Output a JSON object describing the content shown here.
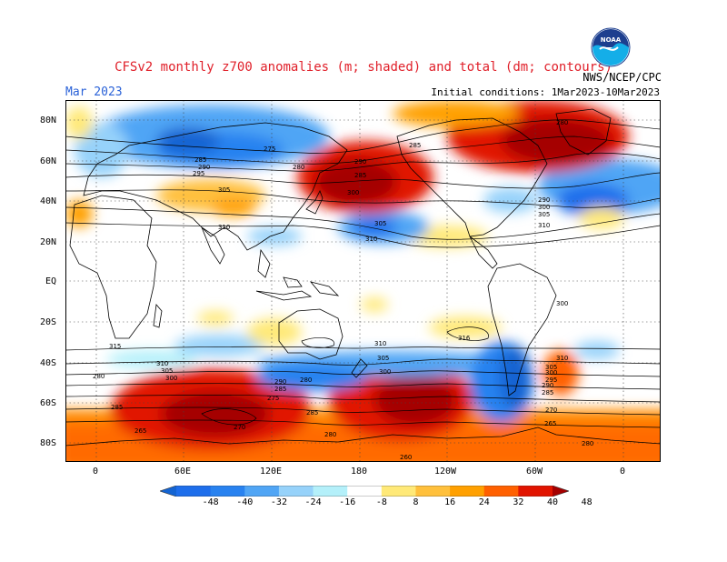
{
  "header": {
    "title": "CFSv2 monthly z700 anomalies (m; shaded) and total (dm; contours)",
    "period": "Mar 2023",
    "source": "NWS/NCEP/CPC",
    "initial_conditions": "Initial conditions: 1Mar2023-10Mar2023",
    "logo_text": "NOAA"
  },
  "map": {
    "lat_labels": [
      "80N",
      "60N",
      "40N",
      "20N",
      "EQ",
      "20S",
      "40S",
      "60S",
      "80S"
    ],
    "lon_labels": [
      "0",
      "60E",
      "120E",
      "180",
      "120W",
      "60W",
      "0"
    ],
    "contour_labels": [
      "275",
      "285",
      "290",
      "295",
      "305",
      "310",
      "280",
      "290",
      "285",
      "300",
      "305",
      "310",
      "285",
      "280",
      "290",
      "300",
      "305",
      "310",
      "315",
      "310",
      "305",
      "300",
      "316",
      "310",
      "305",
      "300",
      "290",
      "285",
      "275",
      "280",
      "285",
      "265",
      "270",
      "285",
      "280",
      "280",
      "265",
      "280",
      "260",
      "270",
      "310",
      "300",
      "305",
      "290",
      "285",
      "295",
      "300"
    ]
  },
  "colorbar": {
    "labels": [
      "-48",
      "-40",
      "-32",
      "-24",
      "-16",
      "-8",
      "8",
      "16",
      "24",
      "32",
      "40",
      "48"
    ],
    "colors": [
      "#1464d2",
      "#1e6eeb",
      "#2882f0",
      "#50a5f5",
      "#96d2fa",
      "#b4f0fa",
      "#ffffff",
      "#ffe978",
      "#ffc03c",
      "#ffa000",
      "#ff6000",
      "#e11400",
      "#a50000"
    ]
  }
}
